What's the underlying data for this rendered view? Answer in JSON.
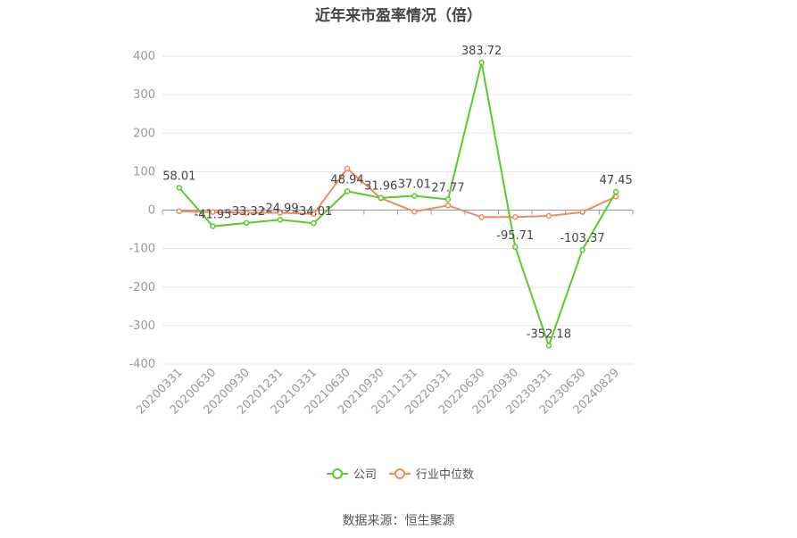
{
  "chart_data": {
    "type": "line",
    "title": "近年来市盈率情况（倍）",
    "categories": [
      "20200331",
      "20200630",
      "20200930",
      "20201231",
      "20210331",
      "20210630",
      "20210930",
      "20211231",
      "20220331",
      "20220630",
      "20220930",
      "20230331",
      "20230630",
      "20240829"
    ],
    "series": [
      {
        "name": "公司",
        "color": "#5cc92d",
        "values": [
          58.01,
          -41.95,
          -33.32,
          -24.99,
          -34.01,
          48.94,
          31.96,
          37.01,
          27.77,
          383.72,
          -95.71,
          -352.18,
          -103.37,
          47.45
        ],
        "labels": [
          "58.01",
          "-41.95",
          "-33.32",
          "-24.99",
          "-34.01",
          "48.94",
          "31.96",
          "37.01",
          "27.77",
          "383.72",
          "-95.71",
          "-352.18",
          "-103.37",
          "47.45"
        ]
      },
      {
        "name": "行业中位数",
        "color": "#f2895a",
        "values": [
          -3,
          -5,
          -7,
          -7,
          -10,
          108,
          31,
          -4,
          12,
          -18,
          -18,
          -15,
          -5,
          35
        ]
      }
    ],
    "ylim": [
      -400,
      400
    ],
    "yticks": [
      "400",
      "300",
      "200",
      "100",
      "0",
      "-100",
      "-200",
      "-300",
      "-400"
    ],
    "grid": true,
    "legend_position": "bottom"
  },
  "footer": {
    "source": "数据来源：恒生聚源"
  }
}
